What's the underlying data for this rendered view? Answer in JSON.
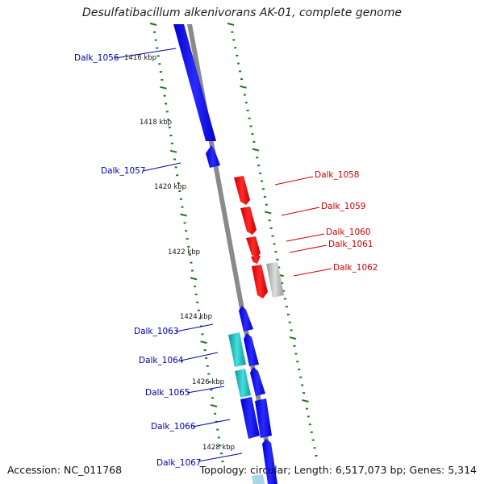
{
  "title": "Desulfatibacillum alkenivorans AK-01, complete genome",
  "footer": {
    "accession": "Accession: NC_011768",
    "summary": "Topology: circular; Length: 6,517,073 bp; Genes: 5,314"
  },
  "colors": {
    "forward": "#0000ee",
    "reverse": "#ee0000",
    "cyan": "#22cccc",
    "gray": "#bbbbbb",
    "backbone": "#888888",
    "tick": "#1a7a1a"
  },
  "scale_labels": [
    "1416 kbp",
    "1418 kbp",
    "1420 kbp",
    "1422 kbp",
    "1424 kbp",
    "1426 kbp",
    "1428 kbp"
  ],
  "genes_left": [
    {
      "label": "Dalk_1056",
      "color": "#0000aa"
    },
    {
      "label": "Dalk_1057",
      "color": "#0000aa"
    },
    {
      "label": "Dalk_1063",
      "color": "#0000aa"
    },
    {
      "label": "Dalk_1064",
      "color": "#0000aa"
    },
    {
      "label": "Dalk_1065",
      "color": "#0000aa"
    },
    {
      "label": "Dalk_1066",
      "color": "#0000aa"
    },
    {
      "label": "Dalk_1067",
      "color": "#0000aa"
    }
  ],
  "genes_right": [
    {
      "label": "Dalk_1058",
      "color": "#cc0000"
    },
    {
      "label": "Dalk_1059",
      "color": "#cc0000"
    },
    {
      "label": "Dalk_1060",
      "color": "#cc0000"
    },
    {
      "label": "Dalk_1061",
      "color": "#cc0000"
    },
    {
      "label": "Dalk_1062",
      "color": "#cc0000"
    }
  ]
}
